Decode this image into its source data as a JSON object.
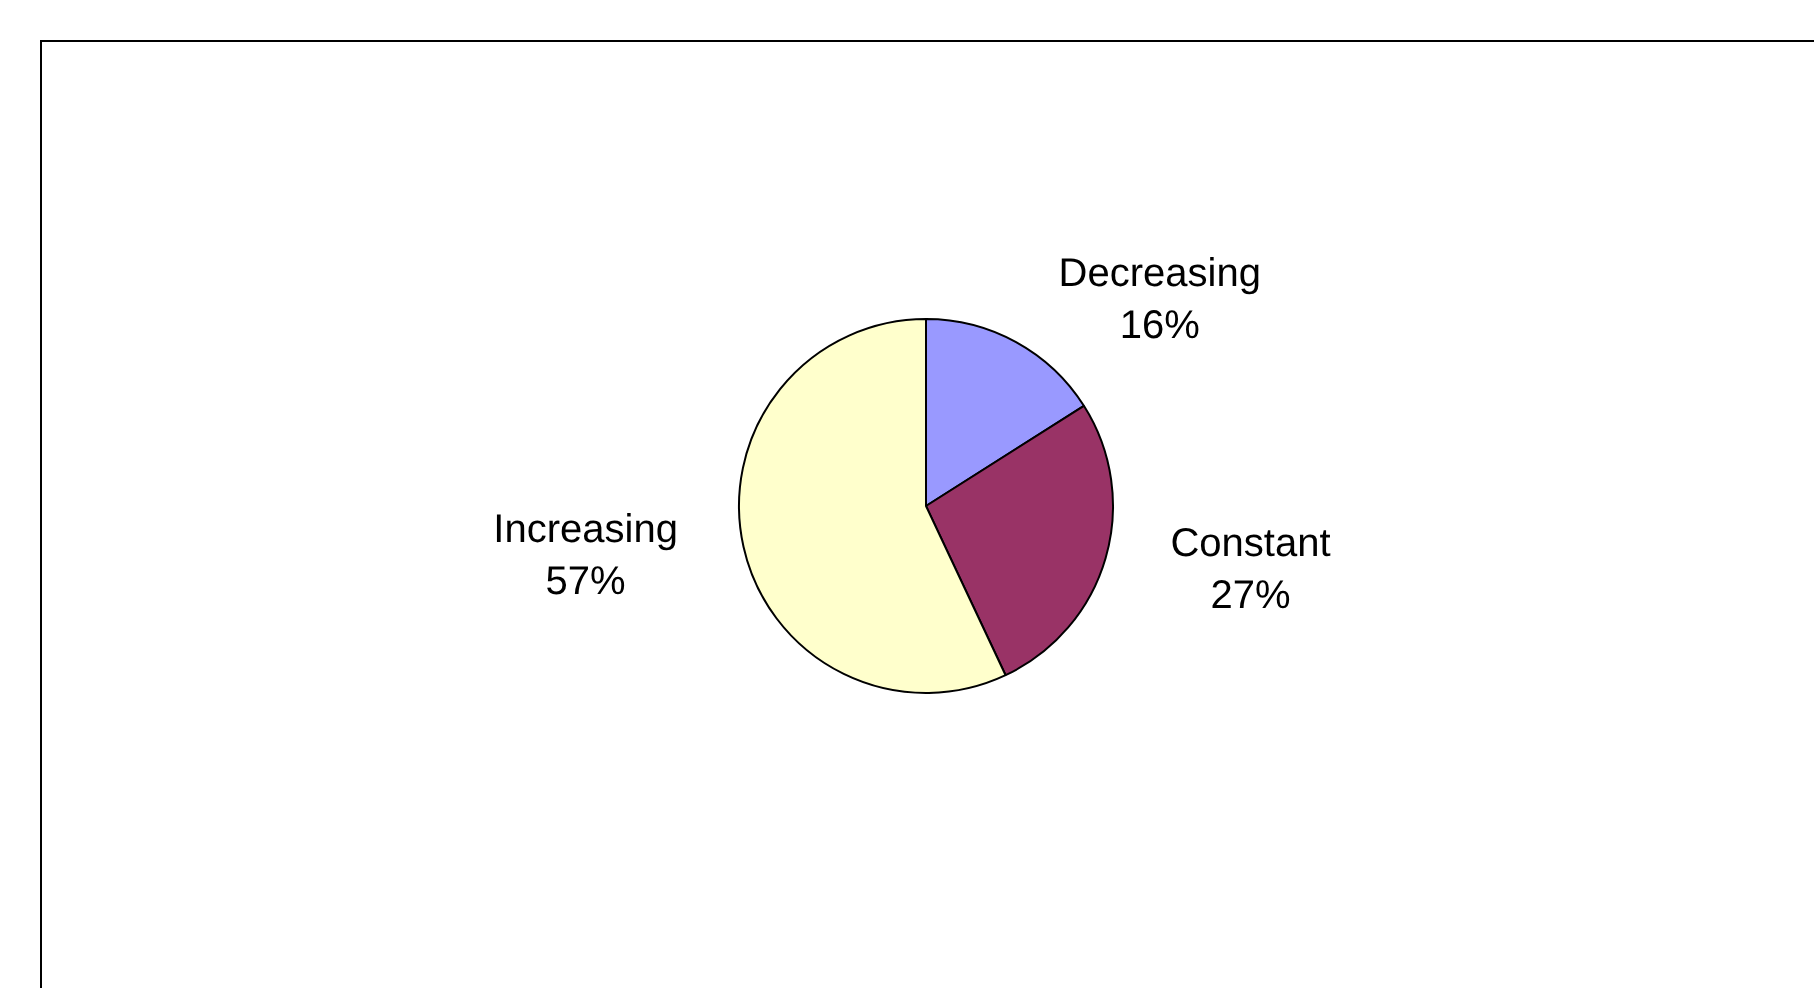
{
  "chart_data": {
    "type": "pie",
    "categories": [
      "Decreasing",
      "Constant",
      "Increasing"
    ],
    "values": [
      16,
      27,
      57
    ],
    "colors": [
      "#9999ff",
      "#993366",
      "#ffffcc"
    ],
    "value_labels": [
      "16%",
      "27%",
      "57%"
    ],
    "legend": false
  }
}
